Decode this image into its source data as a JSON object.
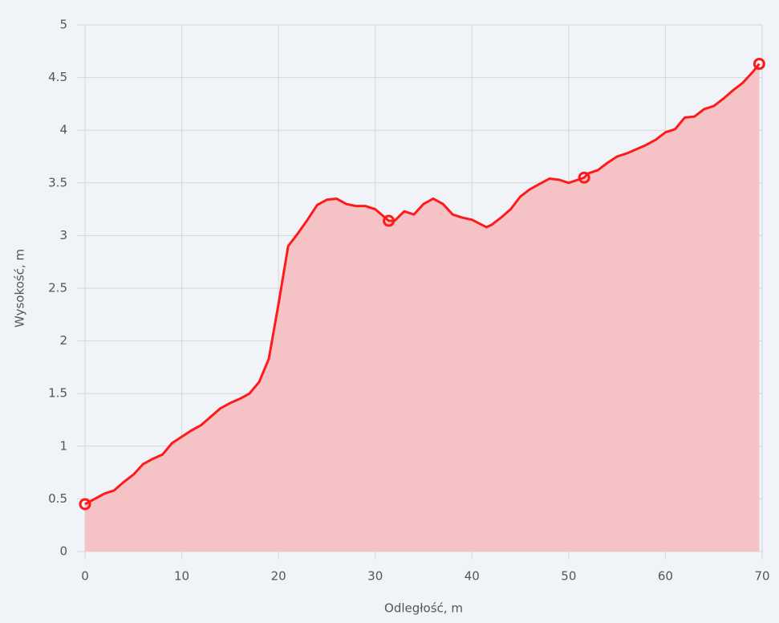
{
  "chart_data": {
    "type": "area",
    "xlabel": "Odległość, m",
    "ylabel": "Wysokość, m",
    "x": [
      0,
      1,
      2,
      3,
      4,
      5,
      6,
      7,
      8,
      9,
      10,
      11,
      12,
      13,
      14,
      15,
      16,
      17,
      18,
      19,
      20,
      21,
      22,
      23,
      24,
      25,
      26,
      27,
      28,
      29,
      30,
      31.4,
      32,
      33,
      34,
      35,
      36,
      37,
      38,
      39,
      40,
      41.5,
      42,
      43,
      44,
      45,
      46,
      47,
      48,
      49,
      50,
      51.6,
      52,
      53,
      54,
      55,
      56,
      57,
      58,
      59,
      60,
      61,
      62,
      63,
      64,
      65,
      66,
      67,
      68,
      69,
      69.7
    ],
    "series": [
      {
        "name": "Wysokość",
        "color": "#ff1a1a",
        "fill_color": "#f5c3c6",
        "values": [
          0.45,
          0.5,
          0.55,
          0.58,
          0.66,
          0.73,
          0.83,
          0.88,
          0.92,
          1.03,
          1.09,
          1.15,
          1.2,
          1.28,
          1.36,
          1.41,
          1.45,
          1.5,
          1.61,
          1.83,
          2.35,
          2.9,
          3.02,
          3.15,
          3.29,
          3.34,
          3.35,
          3.3,
          3.28,
          3.28,
          3.25,
          3.14,
          3.14,
          3.23,
          3.2,
          3.3,
          3.35,
          3.3,
          3.2,
          3.17,
          3.15,
          3.08,
          3.1,
          3.17,
          3.25,
          3.37,
          3.44,
          3.49,
          3.54,
          3.53,
          3.5,
          3.55,
          3.59,
          3.62,
          3.69,
          3.75,
          3.78,
          3.82,
          3.86,
          3.91,
          3.98,
          4.01,
          4.12,
          4.13,
          4.2,
          4.23,
          4.3,
          4.38,
          4.45,
          4.55,
          4.63
        ],
        "marker_indices": [
          0,
          31,
          51,
          70
        ]
      }
    ],
    "xlim": [
      0,
      70
    ],
    "xticks": [
      0,
      10,
      20,
      30,
      40,
      50,
      60,
      70
    ],
    "ylim": [
      0,
      5
    ],
    "yticks": [
      0,
      0.5,
      1,
      1.5,
      2,
      2.5,
      3,
      3.5,
      4,
      4.5,
      5
    ],
    "grid": true
  }
}
